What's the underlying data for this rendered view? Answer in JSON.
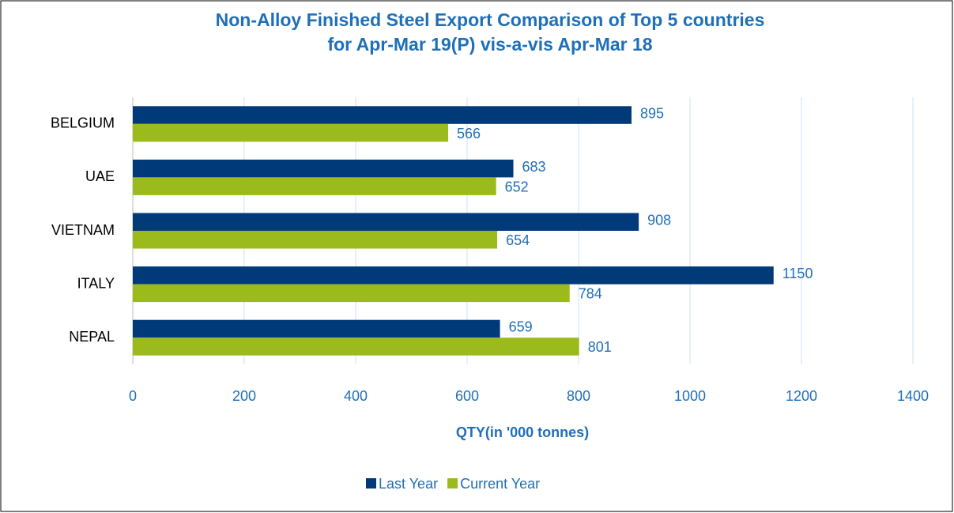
{
  "chart_data": {
    "type": "hbar",
    "title": [
      "Non-Alloy Finished Steel Export Comparison of Top 5 countries",
      "for Apr-Mar 19(P)  vis-a-vis Apr-Mar 18"
    ],
    "categories": [
      "BELGIUM",
      "UAE",
      "VIETNAM",
      "ITALY",
      "NEPAL"
    ],
    "series": [
      {
        "name": "Last Year",
        "color": "#003a78",
        "values": [
          895,
          683,
          908,
          1150,
          659
        ]
      },
      {
        "name": "Current Year",
        "color": "#9bbb1c",
        "values": [
          566,
          652,
          654,
          784,
          801
        ]
      }
    ],
    "x_label": "QTY(in '000 tonnes)",
    "xlim": [
      0,
      1400
    ],
    "xticks": [
      0,
      200,
      400,
      600,
      800,
      1000,
      1200,
      1400
    ],
    "grid": true,
    "legend": "bottom"
  }
}
